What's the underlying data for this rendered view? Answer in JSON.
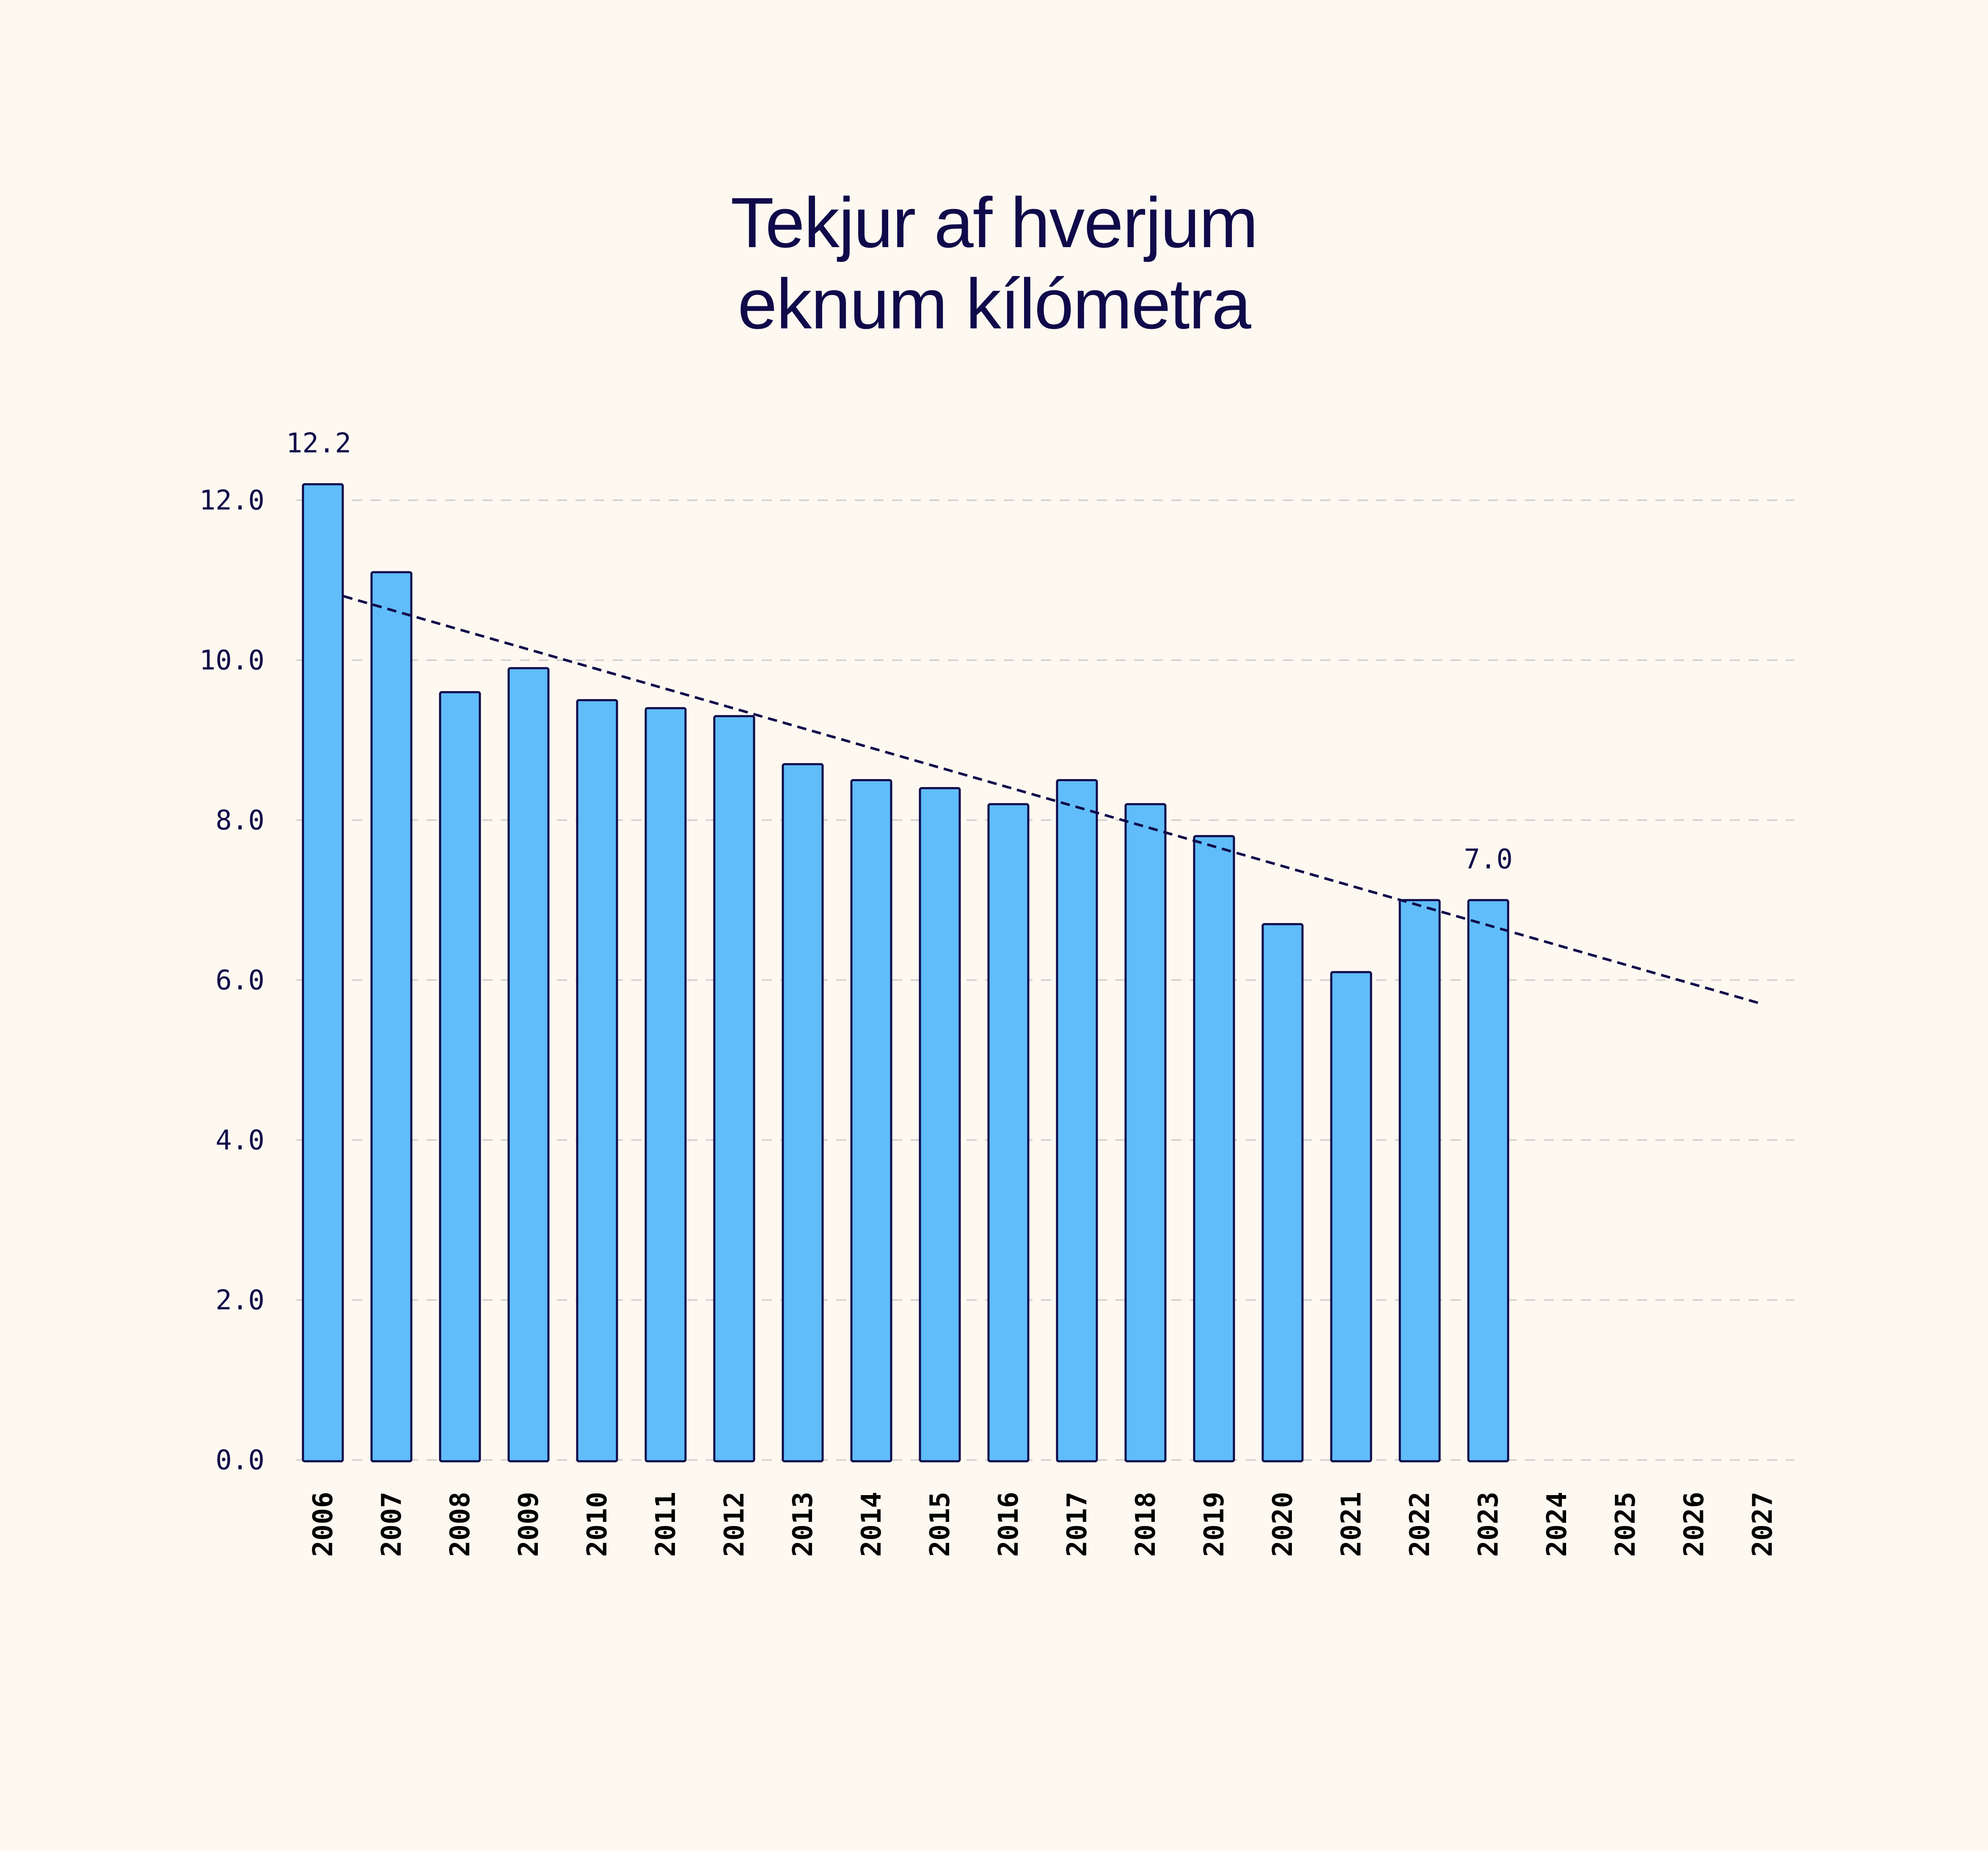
{
  "title_lines": [
    "Tekjur af hverjum",
    "eknum kílómetra"
  ],
  "colors": {
    "background": "#fdf9f1",
    "bar_fill": "#60bdf9",
    "bar_stroke": "#100a4a",
    "text": "#100a4a",
    "grid": "#d6d3d2",
    "trend": "#100a4a"
  },
  "chart_data": {
    "type": "bar",
    "title": "Tekjur af hverjum eknum kílómetra",
    "xlabel": "",
    "ylabel": "",
    "categories": [
      "2006",
      "2007",
      "2008",
      "2009",
      "2010",
      "2011",
      "2012",
      "2013",
      "2014",
      "2015",
      "2016",
      "2017",
      "2018",
      "2019",
      "2020",
      "2021",
      "2022",
      "2023",
      "2024",
      "2025",
      "2026",
      "2027"
    ],
    "values": [
      12.2,
      11.1,
      9.6,
      9.9,
      9.5,
      9.4,
      9.3,
      8.7,
      8.5,
      8.4,
      8.2,
      8.5,
      8.2,
      7.8,
      6.7,
      6.1,
      7.0,
      7.0,
      null,
      null,
      null,
      null
    ],
    "ylim": [
      0,
      12.5
    ],
    "yticks": [
      0.0,
      2.0,
      4.0,
      6.0,
      8.0,
      10.0,
      12.0
    ],
    "ytick_labels": [
      "0.0",
      "2.0",
      "4.0",
      "6.0",
      "8.0",
      "10.0",
      "12.0"
    ],
    "grid": "horizontal dashed",
    "annotations": [
      {
        "category": "2006",
        "text": "12.2"
      },
      {
        "category": "2023",
        "text": "7.0"
      }
    ],
    "trend_line": {
      "style": "dashed",
      "start": {
        "x": 2006.3,
        "y": 10.8
      },
      "end": {
        "x": 2027,
        "y": 5.7
      }
    },
    "legend": "none"
  }
}
